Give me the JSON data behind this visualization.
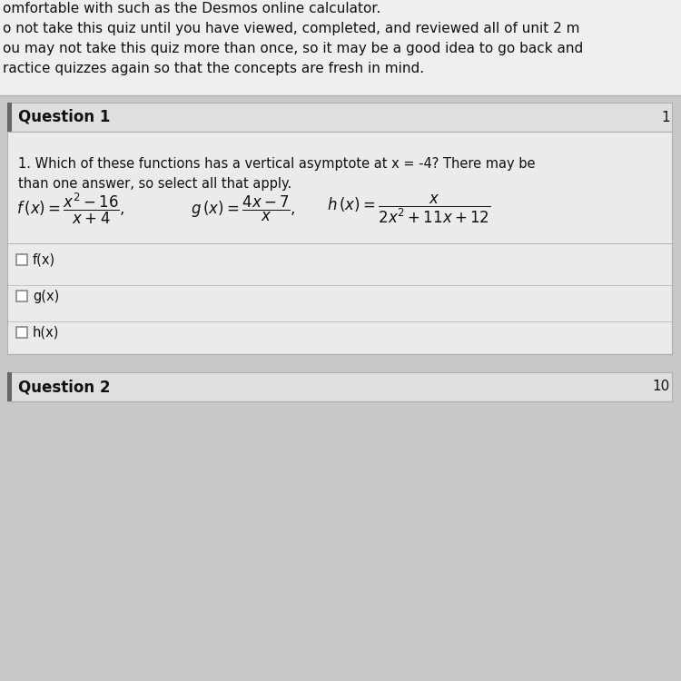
{
  "header_lines": [
    "omfortable with such as the Desmos online calculator.",
    "o not take this quiz until you have viewed, completed, and reviewed all of unit 2 m",
    "ou may not take this quiz more than once, so it may be a good idea to go back and",
    "ractice quizzes again so that the concepts are fresh in mind."
  ],
  "question_label": "Question 1",
  "question_number_right": "1",
  "question_text_line1": "1. Which of these functions has a vertical asymptote at x = -4? There may be",
  "question_text_line2": "than one answer, so select all that apply.",
  "checkboxes": [
    "f(x)",
    "g(x)",
    "h(x)"
  ],
  "question2_label": "Question 2",
  "question2_number_right": "10",
  "overall_bg": "#c8c8c8",
  "header_bg": "#f0efee",
  "q_header_bg": "#e0dfde",
  "q_body_bg": "#ebebea",
  "separator_color": "#b0afae",
  "checkbox_border": "#888888",
  "text_color": "#111111",
  "accent_color": "#666666",
  "border_color": "#b0afae"
}
